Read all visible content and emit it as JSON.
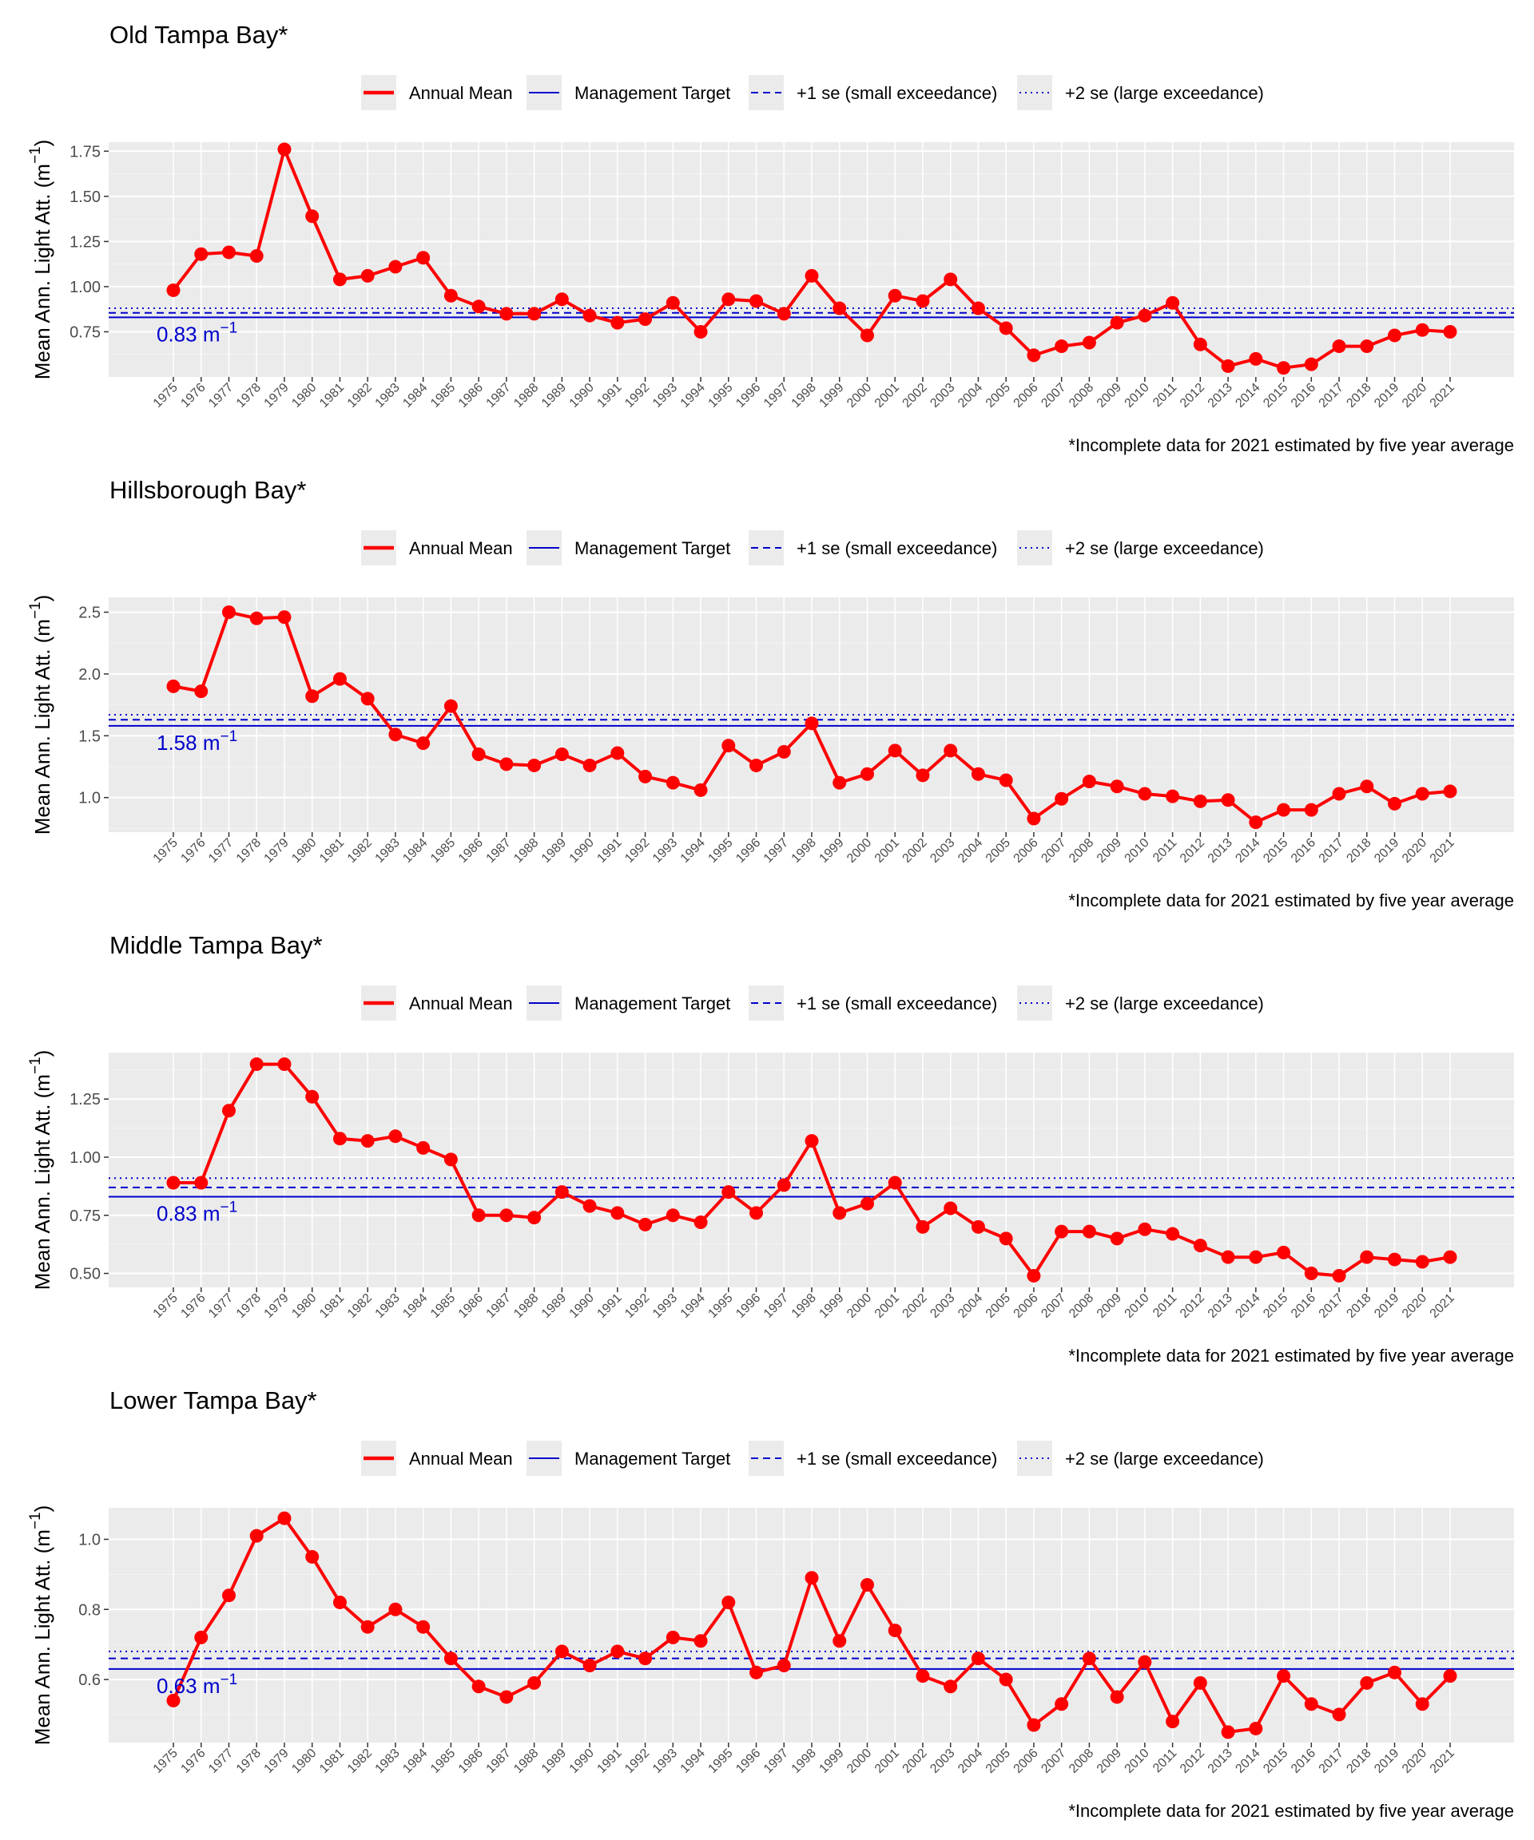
{
  "legend": {
    "annual_mean": "Annual Mean",
    "management_target": "Management Target",
    "plus_one_se": "+1 se (small exceedance)",
    "plus_two_se": "+2 se (large exceedance)"
  },
  "y_label": "Mean Ann. Light Att. (m",
  "y_label_exponent": "−1",
  "y_label_close": ")",
  "footnote": "*Incomplete data for 2021 estimated by five year average",
  "target_unit": "m",
  "target_unit_exponent": "−1",
  "colors": {
    "series": "#ff0000",
    "target": "#0000cc",
    "panel_bg": "#ebebeb",
    "legend_key_bg": "#ebebeb",
    "text": "#000000",
    "tick_text": "#4d4d4d"
  },
  "chart_data": [
    {
      "type": "line",
      "title": "Old Tampa Bay*",
      "target": 0.83,
      "target_label": "0.83",
      "small_exceedance": 0.855,
      "large_exceedance": 0.88,
      "ylim": [
        0.5,
        1.8
      ],
      "yticks": [
        0.75,
        1.0,
        1.25,
        1.5,
        1.75
      ],
      "ytick_labels": [
        "0.75",
        "1.00",
        "1.25",
        "1.50",
        "1.75"
      ],
      "x": [
        1975,
        1976,
        1977,
        1978,
        1979,
        1980,
        1981,
        1982,
        1983,
        1984,
        1985,
        1986,
        1987,
        1988,
        1989,
        1990,
        1991,
        1992,
        1993,
        1994,
        1995,
        1996,
        1997,
        1998,
        1999,
        2000,
        2001,
        2002,
        2003,
        2004,
        2005,
        2006,
        2007,
        2008,
        2009,
        2010,
        2011,
        2012,
        2013,
        2014,
        2015,
        2016,
        2017,
        2018,
        2019,
        2020,
        2021
      ],
      "values": [
        0.98,
        1.18,
        1.19,
        1.17,
        1.76,
        1.39,
        1.04,
        1.06,
        1.11,
        1.16,
        0.95,
        0.89,
        0.85,
        0.85,
        0.93,
        0.84,
        0.8,
        0.82,
        0.91,
        0.75,
        0.93,
        0.92,
        0.85,
        1.06,
        0.88,
        0.73,
        0.95,
        0.92,
        1.04,
        0.88,
        0.77,
        0.62,
        0.67,
        0.69,
        0.8,
        0.84,
        0.91,
        0.68,
        0.56,
        0.6,
        0.55,
        0.57,
        0.67,
        0.67,
        0.73,
        0.76,
        0.75
      ]
    },
    {
      "type": "line",
      "title": "Hillsborough Bay*",
      "target": 1.58,
      "target_label": "1.58",
      "small_exceedance": 1.63,
      "large_exceedance": 1.67,
      "ylim": [
        0.72,
        2.62
      ],
      "yticks": [
        1.0,
        1.5,
        2.0,
        2.5
      ],
      "ytick_labels": [
        "1.0",
        "1.5",
        "2.0",
        "2.5"
      ],
      "x": [
        1975,
        1976,
        1977,
        1978,
        1979,
        1980,
        1981,
        1982,
        1983,
        1984,
        1985,
        1986,
        1987,
        1988,
        1989,
        1990,
        1991,
        1992,
        1993,
        1994,
        1995,
        1996,
        1997,
        1998,
        1999,
        2000,
        2001,
        2002,
        2003,
        2004,
        2005,
        2006,
        2007,
        2008,
        2009,
        2010,
        2011,
        2012,
        2013,
        2014,
        2015,
        2016,
        2017,
        2018,
        2019,
        2020,
        2021
      ],
      "values": [
        1.9,
        1.86,
        2.5,
        2.45,
        2.46,
        1.82,
        1.96,
        1.8,
        1.51,
        1.44,
        1.74,
        1.35,
        1.27,
        1.26,
        1.35,
        1.26,
        1.36,
        1.17,
        1.12,
        1.06,
        1.42,
        1.26,
        1.37,
        1.6,
        1.12,
        1.19,
        1.38,
        1.18,
        1.38,
        1.19,
        1.14,
        0.83,
        0.99,
        1.13,
        1.09,
        1.03,
        1.01,
        0.97,
        0.98,
        0.8,
        0.9,
        0.9,
        1.03,
        1.09,
        0.95,
        1.03,
        1.05
      ]
    },
    {
      "type": "line",
      "title": "Middle Tampa Bay*",
      "target": 0.83,
      "target_label": "0.83",
      "small_exceedance": 0.87,
      "large_exceedance": 0.91,
      "ylim": [
        0.44,
        1.45
      ],
      "yticks": [
        0.5,
        0.75,
        1.0,
        1.25
      ],
      "ytick_labels": [
        "0.50",
        "0.75",
        "1.00",
        "1.25"
      ],
      "x": [
        1975,
        1976,
        1977,
        1978,
        1979,
        1980,
        1981,
        1982,
        1983,
        1984,
        1985,
        1986,
        1987,
        1988,
        1989,
        1990,
        1991,
        1992,
        1993,
        1994,
        1995,
        1996,
        1997,
        1998,
        1999,
        2000,
        2001,
        2002,
        2003,
        2004,
        2005,
        2006,
        2007,
        2008,
        2009,
        2010,
        2011,
        2012,
        2013,
        2014,
        2015,
        2016,
        2017,
        2018,
        2019,
        2020,
        2021
      ],
      "values": [
        0.89,
        0.89,
        1.2,
        1.4,
        1.4,
        1.26,
        1.08,
        1.07,
        1.09,
        1.04,
        0.99,
        0.75,
        0.75,
        0.74,
        0.85,
        0.79,
        0.76,
        0.71,
        0.75,
        0.72,
        0.85,
        0.76,
        0.88,
        1.07,
        0.76,
        0.8,
        0.89,
        0.7,
        0.78,
        0.7,
        0.65,
        0.49,
        0.68,
        0.68,
        0.65,
        0.69,
        0.67,
        0.62,
        0.57,
        0.57,
        0.59,
        0.5,
        0.49,
        0.57,
        0.56,
        0.55,
        0.57
      ]
    },
    {
      "type": "line",
      "title": "Lower Tampa Bay*",
      "target": 0.63,
      "target_label": "0.63",
      "small_exceedance": 0.66,
      "large_exceedance": 0.68,
      "ylim": [
        0.42,
        1.09
      ],
      "yticks": [
        0.6,
        0.8,
        1.0
      ],
      "ytick_labels": [
        "0.6",
        "0.8",
        "1.0"
      ],
      "x": [
        1975,
        1976,
        1977,
        1978,
        1979,
        1980,
        1981,
        1982,
        1983,
        1984,
        1985,
        1986,
        1987,
        1988,
        1989,
        1990,
        1991,
        1992,
        1993,
        1994,
        1995,
        1996,
        1997,
        1998,
        1999,
        2000,
        2001,
        2002,
        2003,
        2004,
        2005,
        2006,
        2007,
        2008,
        2009,
        2010,
        2011,
        2012,
        2013,
        2014,
        2015,
        2016,
        2017,
        2018,
        2019,
        2020,
        2021
      ],
      "values": [
        0.54,
        0.72,
        0.84,
        1.01,
        1.06,
        0.95,
        0.82,
        0.75,
        0.8,
        0.75,
        0.66,
        0.58,
        0.55,
        0.59,
        0.68,
        0.64,
        0.68,
        0.66,
        0.72,
        0.71,
        0.82,
        0.62,
        0.64,
        0.89,
        0.71,
        0.87,
        0.74,
        0.61,
        0.58,
        0.66,
        0.6,
        0.47,
        0.53,
        0.66,
        0.55,
        0.65,
        0.48,
        0.59,
        0.45,
        0.46,
        0.61,
        0.53,
        0.5,
        0.59,
        0.62,
        0.53,
        0.61
      ]
    }
  ]
}
